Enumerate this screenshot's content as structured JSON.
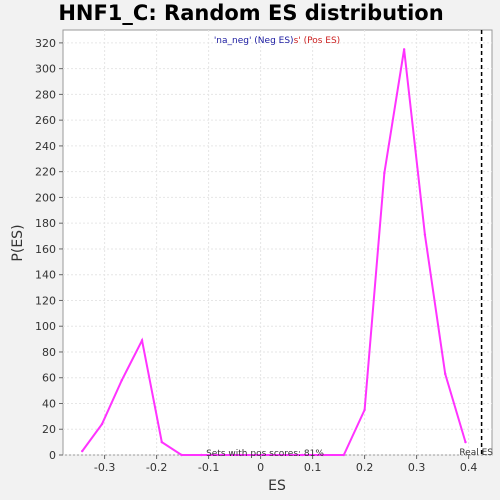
{
  "chart_data": {
    "type": "line",
    "title": "HNF1_C: Random ES distribution",
    "xlabel": "ES",
    "ylabel": "P(ES)",
    "xlim": [
      -0.38,
      0.445
    ],
    "ylim": [
      0,
      330
    ],
    "xticks": [
      -0.3,
      -0.2,
      -0.1,
      0.0,
      0.1,
      0.2,
      0.3,
      0.4
    ],
    "xtick_labels": [
      "-0.3",
      "-0.2",
      "-0.1",
      "0",
      "0.1",
      "0.2",
      "0.3",
      "0.4"
    ],
    "yticks": [
      0,
      20,
      40,
      60,
      80,
      100,
      120,
      140,
      160,
      180,
      200,
      220,
      240,
      260,
      280,
      300,
      320
    ],
    "grid": true,
    "series": [
      {
        "color": "#ff33ff",
        "x": [
          -0.343,
          -0.305,
          -0.267,
          -0.228,
          -0.19,
          -0.152,
          -0.114,
          -0.076,
          -0.038,
          0.0,
          0.04,
          0.08,
          0.12,
          0.16,
          0.2,
          0.238,
          0.276,
          0.316,
          0.355,
          0.394
        ],
        "y": [
          3,
          24,
          58,
          89,
          10,
          0,
          0,
          0,
          0,
          0,
          0,
          0,
          0,
          0,
          35,
          219,
          315,
          171,
          63,
          10
        ]
      }
    ],
    "real_es": 0.425,
    "real_es_label": "Real ES",
    "legend_neg": "'na_neg' (Neg ES)",
    "legend_pos": "s' (Pos ES)",
    "legend_neg_color": "#1a1aa0",
    "legend_pos_color": "#cc2222",
    "annotation": "Sets with pos scores: 81%"
  }
}
